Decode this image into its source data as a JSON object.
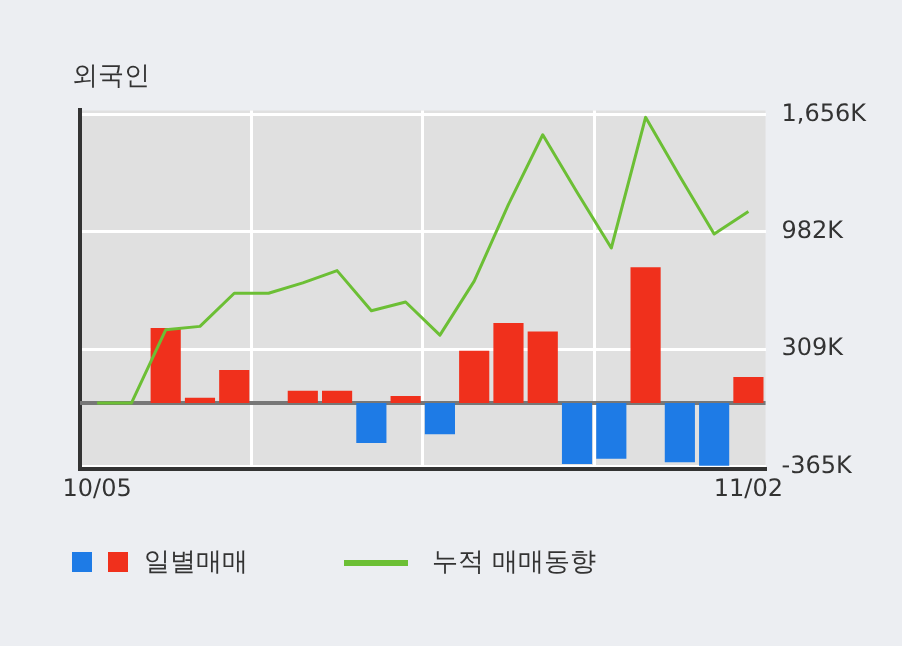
{
  "chart_data": {
    "type": "bar",
    "title": "외국인",
    "categories": [
      "10/05",
      null,
      null,
      null,
      null,
      null,
      null,
      null,
      null,
      null,
      null,
      null,
      null,
      null,
      null,
      null,
      null,
      null,
      null,
      "11/02"
    ],
    "series": [
      {
        "name": "일별매매",
        "colors": [
          "#f0301c",
          "#f0301c",
          "#f0301c",
          "#f0301c",
          "#f0301c",
          "#f0301c",
          "#f0301c",
          "#f0301c",
          "#1e7be6",
          "#f0301c",
          "#1e7be6",
          "#f0301c",
          "#f0301c",
          "#f0301c",
          "#1e7be6",
          "#1e7be6",
          "#f0301c",
          "#1e7be6",
          "#1e7be6",
          "#f0301c"
        ],
        "values": [
          0,
          0,
          430,
          30,
          190,
          0,
          70,
          70,
          -230,
          40,
          -180,
          300,
          460,
          410,
          -350,
          -320,
          780,
          -340,
          -360,
          150
        ]
      },
      {
        "name": "누적 매매동향",
        "type": "line",
        "color": "#6cbf35",
        "values": [
          0,
          0,
          420,
          440,
          630,
          630,
          690,
          760,
          530,
          580,
          390,
          700,
          1140,
          1540,
          1210,
          890,
          1640,
          1300,
          970,
          1100
        ]
      }
    ],
    "ylim": [
      -380,
      1680
    ],
    "yticks": [
      {
        "value": -365,
        "label": "-365K"
      },
      {
        "value": 309,
        "label": "309K"
      },
      {
        "value": 982,
        "label": "982K"
      },
      {
        "value": 1656,
        "label": "1,656K"
      }
    ],
    "grid": true,
    "legend": "bottom",
    "marker": "none",
    "line_style": "solid"
  }
}
